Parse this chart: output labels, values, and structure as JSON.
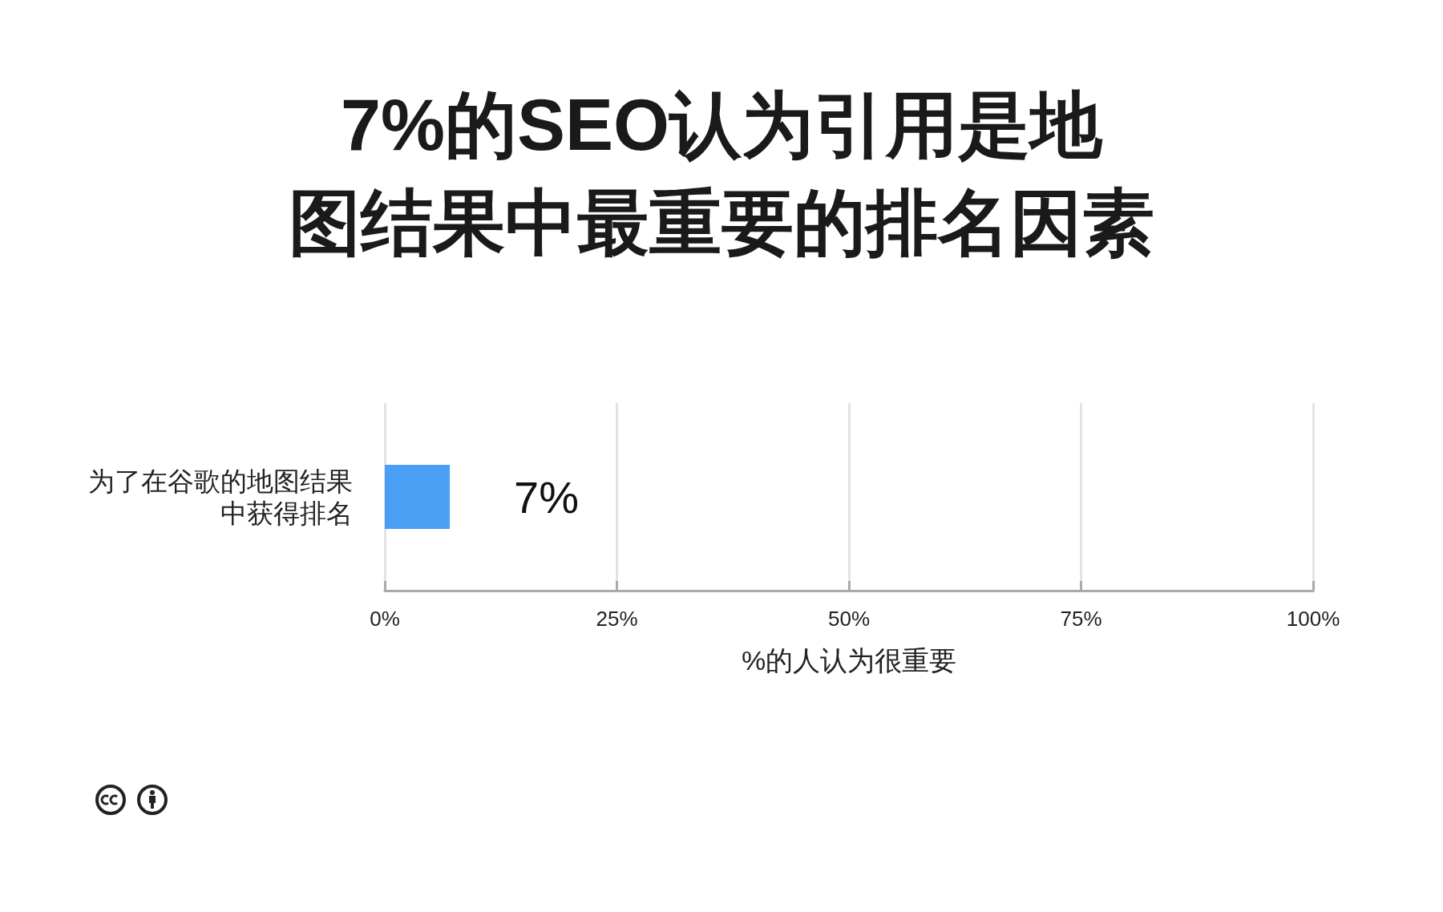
{
  "chart_data": {
    "type": "bar",
    "orientation": "horizontal",
    "title": "7%的SEO认为引用是地图结果中最重要的排名因素",
    "categories": [
      "为了在谷歌的地图结果中获得排名"
    ],
    "values": [
      7
    ],
    "value_labels": [
      "7%"
    ],
    "color": "#4a9ff5",
    "xlabel": "%的人认为很重要",
    "xlim": [
      0,
      100
    ],
    "xticks": [
      {
        "value": 0,
        "label": "0%"
      },
      {
        "value": 25,
        "label": "25%"
      },
      {
        "value": 50,
        "label": "50%"
      },
      {
        "value": 75,
        "label": "75%"
      },
      {
        "value": 100,
        "label": "100%"
      }
    ],
    "grid": "x"
  }
}
